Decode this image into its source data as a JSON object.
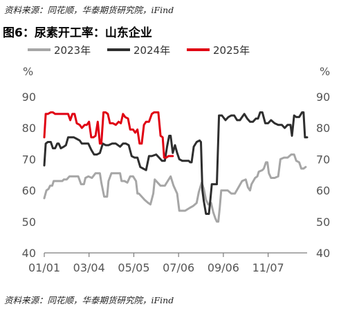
{
  "source_top": "资料来源：同花顺，华泰期货研究院，iFind",
  "source_bottom": "资料来源：同花顺，华泰期货研究院，iFind",
  "chart_data": {
    "type": "line",
    "title": "图6：尿素开工率：山东企业",
    "ylabel_left": "%",
    "ylabel_right": "%",
    "ylim": [
      40,
      90
    ],
    "yticks": [
      40,
      50,
      60,
      70,
      80,
      90
    ],
    "xlim": [
      1,
      365
    ],
    "xtick_labels": [
      "01/01",
      "03/04",
      "05/05",
      "07/06",
      "09/06",
      "11/07"
    ],
    "xtick_days": [
      1,
      63,
      125,
      187,
      249,
      311
    ],
    "grid": false,
    "legend_position": "top",
    "series": [
      {
        "name": "2023年",
        "color": "#a6a6a6",
        "points": [
          [
            1,
            57.5
          ],
          [
            4,
            60
          ],
          [
            7,
            60.5
          ],
          [
            9,
            61.5
          ],
          [
            12,
            61.5
          ],
          [
            14,
            63
          ],
          [
            20,
            63
          ],
          [
            26,
            63
          ],
          [
            28,
            63.5
          ],
          [
            32,
            63.5
          ],
          [
            36,
            64.5
          ],
          [
            42,
            64.5
          ],
          [
            48,
            64.5
          ],
          [
            52,
            62
          ],
          [
            56,
            62
          ],
          [
            58,
            64
          ],
          [
            62,
            64.5
          ],
          [
            67,
            64
          ],
          [
            72,
            65.5
          ],
          [
            78,
            65.5
          ],
          [
            80,
            62.5
          ],
          [
            84,
            58
          ],
          [
            88,
            58
          ],
          [
            90,
            63
          ],
          [
            94,
            65.5
          ],
          [
            100,
            65.5
          ],
          [
            106,
            65.5
          ],
          [
            108,
            63
          ],
          [
            112,
            63
          ],
          [
            116,
            62.5
          ],
          [
            120,
            64.5
          ],
          [
            124,
            64.5
          ],
          [
            128,
            63
          ],
          [
            130,
            59
          ],
          [
            132,
            59
          ],
          [
            136,
            58
          ],
          [
            140,
            57
          ],
          [
            145,
            56
          ],
          [
            148,
            55.5
          ],
          [
            152,
            59
          ],
          [
            154,
            63.5
          ],
          [
            158,
            62.5
          ],
          [
            162,
            61.5
          ],
          [
            168,
            61.5
          ],
          [
            172,
            63
          ],
          [
            176,
            64.5
          ],
          [
            180,
            61.5
          ],
          [
            185,
            59
          ],
          [
            188,
            53.5
          ],
          [
            196,
            53.5
          ],
          [
            203,
            54.5
          ],
          [
            207,
            55
          ],
          [
            212,
            56
          ],
          [
            215,
            59.5
          ],
          [
            219,
            62.5
          ],
          [
            222,
            60.5
          ],
          [
            225,
            57
          ],
          [
            228,
            55.5
          ],
          [
            232,
            56
          ],
          [
            235,
            53
          ],
          [
            238,
            51
          ],
          [
            240,
            50
          ],
          [
            242,
            50
          ],
          [
            244,
            54.5
          ],
          [
            246,
            60
          ],
          [
            248,
            60
          ],
          [
            251,
            60
          ],
          [
            255,
            60
          ],
          [
            260,
            59
          ],
          [
            265,
            59
          ],
          [
            270,
            61
          ],
          [
            275,
            63
          ],
          [
            280,
            63.5
          ],
          [
            283,
            61
          ],
          [
            286,
            60
          ],
          [
            288,
            62
          ],
          [
            293,
            64
          ],
          [
            296,
            64.5
          ],
          [
            298,
            66
          ],
          [
            303,
            66.5
          ],
          [
            305,
            67
          ],
          [
            308,
            69
          ],
          [
            310,
            69
          ],
          [
            312,
            65.5
          ],
          [
            315,
            64
          ],
          [
            320,
            64
          ],
          [
            325,
            64.5
          ],
          [
            328,
            70
          ],
          [
            333,
            70.5
          ],
          [
            338,
            70.5
          ],
          [
            343,
            71.5
          ],
          [
            347,
            71.5
          ],
          [
            350,
            69.5
          ],
          [
            354,
            69
          ],
          [
            357,
            67
          ],
          [
            360,
            67
          ],
          [
            363,
            67.5
          ]
        ]
      },
      {
        "name": "2024年",
        "color": "#2e2e2e",
        "points": [
          [
            1,
            68
          ],
          [
            3,
            75
          ],
          [
            6,
            75.5
          ],
          [
            10,
            75.5
          ],
          [
            13,
            73.5
          ],
          [
            16,
            73.5
          ],
          [
            19,
            75
          ],
          [
            21,
            75
          ],
          [
            24,
            73.5
          ],
          [
            28,
            74
          ],
          [
            31,
            74.5
          ],
          [
            34,
            77
          ],
          [
            38,
            77
          ],
          [
            42,
            77
          ],
          [
            46,
            76.5
          ],
          [
            50,
            76
          ],
          [
            53,
            75
          ],
          [
            58,
            75
          ],
          [
            62,
            75
          ],
          [
            66,
            73
          ],
          [
            70,
            71.5
          ],
          [
            74,
            71.5
          ],
          [
            78,
            72
          ],
          [
            82,
            75
          ],
          [
            86,
            74.5
          ],
          [
            90,
            74.5
          ],
          [
            95,
            75
          ],
          [
            100,
            75
          ],
          [
            106,
            74
          ],
          [
            110,
            75
          ],
          [
            114,
            75
          ],
          [
            118,
            74.5
          ],
          [
            122,
            71
          ],
          [
            126,
            70.5
          ],
          [
            130,
            70.5
          ],
          [
            134,
            67.5
          ],
          [
            138,
            67
          ],
          [
            142,
            66.5
          ],
          [
            146,
            71
          ],
          [
            150,
            71
          ],
          [
            156,
            71.5
          ],
          [
            160,
            70.5
          ],
          [
            164,
            69.5
          ],
          [
            168,
            69.5
          ],
          [
            171,
            74
          ],
          [
            174,
            77.5
          ],
          [
            176,
            77.5
          ],
          [
            179,
            72
          ],
          [
            182,
            74.5
          ],
          [
            185,
            72
          ],
          [
            188,
            70
          ],
          [
            192,
            69.5
          ],
          [
            197,
            69.5
          ],
          [
            201,
            69.5
          ],
          [
            203,
            69
          ],
          [
            205,
            69
          ],
          [
            208,
            74
          ],
          [
            212,
            75.5
          ],
          [
            216,
            76
          ],
          [
            218,
            75.5
          ],
          [
            220,
            60
          ],
          [
            222,
            56.5
          ],
          [
            225,
            52.5
          ],
          [
            229,
            52.5
          ],
          [
            231,
            57
          ],
          [
            233,
            62
          ],
          [
            236,
            62
          ],
          [
            240,
            62
          ],
          [
            243,
            84
          ],
          [
            247,
            84
          ],
          [
            252,
            82.5
          ],
          [
            256,
            83.5
          ],
          [
            260,
            84
          ],
          [
            264,
            84
          ],
          [
            268,
            82.5
          ],
          [
            272,
            82.5
          ],
          [
            275,
            83.5
          ],
          [
            278,
            84.5
          ],
          [
            282,
            83
          ],
          [
            286,
            82
          ],
          [
            290,
            82
          ],
          [
            294,
            83
          ],
          [
            297,
            83
          ],
          [
            300,
            85
          ],
          [
            303,
            85
          ],
          [
            307,
            81.5
          ],
          [
            311,
            81.5
          ],
          [
            315,
            82.5
          ],
          [
            320,
            81.5
          ],
          [
            325,
            81
          ],
          [
            330,
            81
          ],
          [
            334,
            80
          ],
          [
            338,
            81
          ],
          [
            342,
            81
          ],
          [
            344,
            77.5
          ],
          [
            347,
            84
          ],
          [
            350,
            83.5
          ],
          [
            354,
            83.5
          ],
          [
            358,
            85
          ],
          [
            360,
            85
          ],
          [
            362,
            77
          ],
          [
            365,
            77
          ]
        ]
      },
      {
        "name": "2025年",
        "color": "#e00012",
        "points": [
          [
            1,
            77
          ],
          [
            3,
            84.5
          ],
          [
            6,
            84.5
          ],
          [
            10,
            85
          ],
          [
            13,
            85
          ],
          [
            16,
            84.5
          ],
          [
            20,
            84.5
          ],
          [
            24,
            84.5
          ],
          [
            28,
            84.5
          ],
          [
            31,
            84.5
          ],
          [
            34,
            84.5
          ],
          [
            37,
            82.5
          ],
          [
            40,
            84.5
          ],
          [
            43,
            84.5
          ],
          [
            46,
            81.5
          ],
          [
            50,
            81
          ],
          [
            53,
            80
          ],
          [
            57,
            81
          ],
          [
            60,
            81
          ],
          [
            63,
            82
          ],
          [
            66,
            77
          ],
          [
            69,
            77
          ],
          [
            72,
            77.5
          ],
          [
            75,
            82
          ],
          [
            78,
            75
          ],
          [
            80,
            75
          ],
          [
            83,
            85
          ],
          [
            86,
            85
          ],
          [
            89,
            84.5
          ],
          [
            92,
            81.5
          ],
          [
            96,
            81.5
          ],
          [
            100,
            81
          ],
          [
            104,
            82
          ],
          [
            107,
            81.5
          ],
          [
            110,
            84.5
          ],
          [
            113,
            83.5
          ],
          [
            117,
            83
          ],
          [
            120,
            79.5
          ],
          [
            124,
            79.5
          ],
          [
            127,
            78.5
          ],
          [
            130,
            79.5
          ],
          [
            133,
            75
          ],
          [
            136,
            75
          ],
          [
            139,
            81
          ],
          [
            142,
            82
          ],
          [
            146,
            82
          ],
          [
            150,
            84.5
          ],
          [
            153,
            85
          ],
          [
            156,
            85
          ],
          [
            159,
            85
          ],
          [
            162,
            77.5
          ],
          [
            165,
            77
          ],
          [
            167,
            70.5
          ],
          [
            170,
            70.5
          ],
          [
            173,
            71
          ],
          [
            176,
            71
          ],
          [
            179,
            71
          ]
        ]
      }
    ]
  }
}
